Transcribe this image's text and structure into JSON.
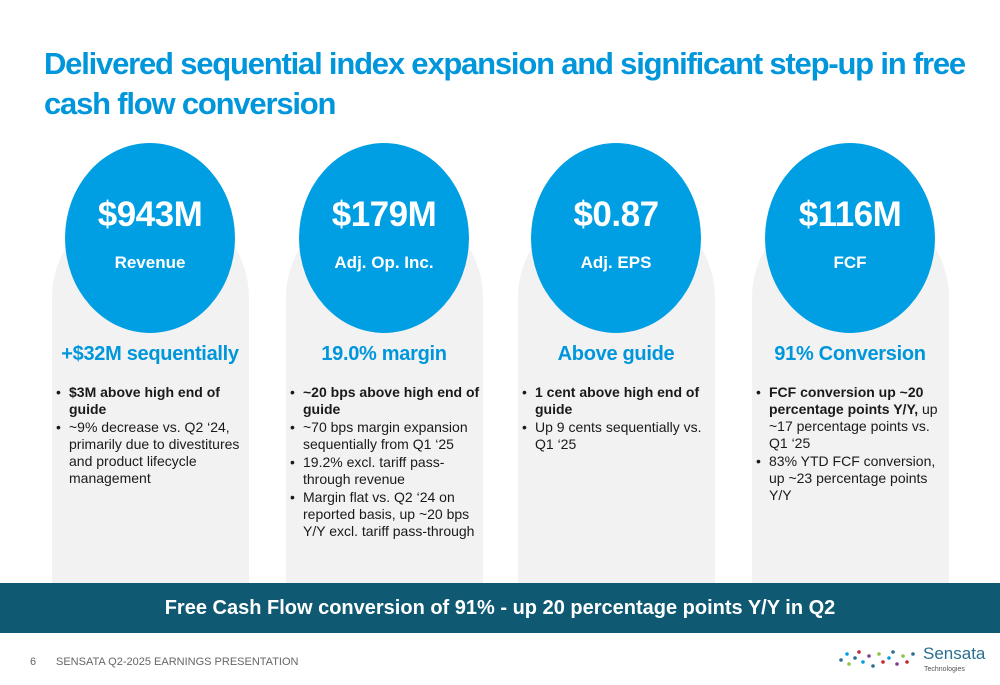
{
  "title": "Delivered sequential index expansion and significant step-up in free cash flow conversion",
  "cards": [
    {
      "value": "$943M",
      "label": "Revenue",
      "highlight": "+$32M sequentially",
      "bullets": [
        {
          "bold": "$3M above high end of guide",
          "text": ""
        },
        {
          "bold": "",
          "text": "~9% decrease vs. Q2 ‘24, primarily due to divestitures and product lifecycle management"
        }
      ]
    },
    {
      "value": "$179M",
      "label": "Adj. Op. Inc.",
      "highlight": "19.0% margin",
      "bullets": [
        {
          "bold": "~20 bps above high end of guide",
          "text": ""
        },
        {
          "bold": "",
          "text": "~70 bps margin expansion sequentially from Q1 ‘25"
        },
        {
          "bold": "",
          "text": "19.2% excl. tariff pass-through revenue"
        },
        {
          "bold": "",
          "text": "Margin flat vs. Q2 ‘24 on reported basis, up ~20 bps Y/Y excl. tariff pass-through"
        }
      ]
    },
    {
      "value": "$0.87",
      "label": "Adj. EPS",
      "highlight": "Above guide",
      "bullets": [
        {
          "bold": "1 cent above high end of guide",
          "text": ""
        },
        {
          "bold": "",
          "text": "Up 9 cents sequentially vs. Q1 ‘25"
        }
      ]
    },
    {
      "value": "$116M",
      "label": "FCF",
      "highlight": "91% Conversion",
      "bullets": [
        {
          "bold": "FCF conversion up ~20 percentage points Y/Y,",
          "text": " up ~17 percentage points vs. Q1 ‘25"
        },
        {
          "bold": "",
          "text": "83% YTD FCF conversion, up ~23 percentage points Y/Y"
        }
      ]
    }
  ],
  "banner": "Free Cash Flow conversion of 91% - up 20 percentage points Y/Y in Q2",
  "footer": {
    "page": "6",
    "text": "SENSATA  Q2-2025 EARNINGS PRESENTATION"
  },
  "logo": {
    "word": "Sensata",
    "sub": "Technologies",
    "name": "sensata-logo",
    "dot_colors": [
      "#2a6f8f",
      "#009fe3",
      "#8cc63f",
      "#c1272d",
      "#7f3f98"
    ]
  }
}
